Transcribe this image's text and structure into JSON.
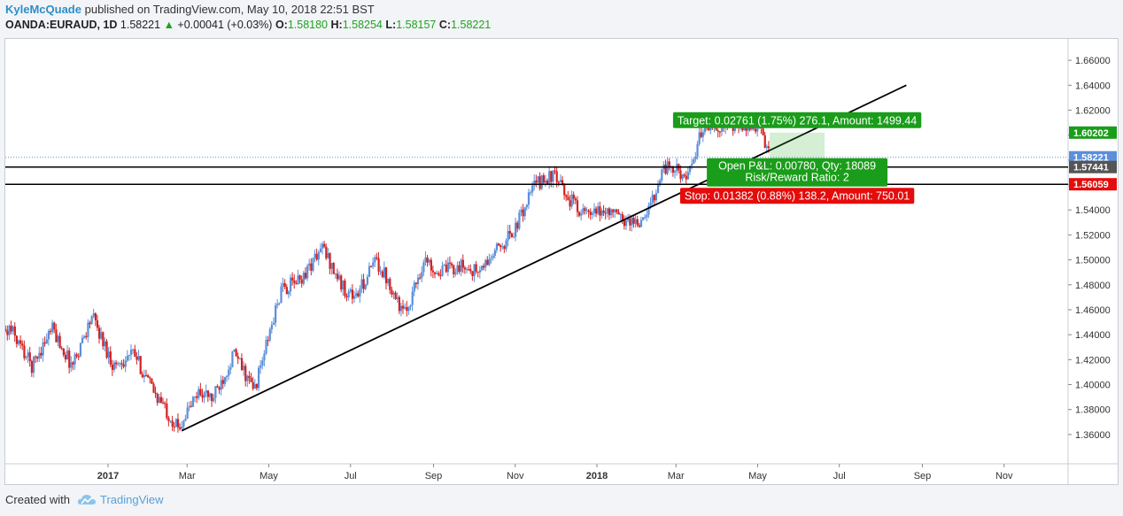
{
  "header": {
    "author": "KyleMcQuade",
    "published_text": "published on TradingView.com, May 10, 2018 22:51 BST",
    "symbol": "OANDA:EURAUD, 1D",
    "last": "1.58221",
    "change_arrow": "▲",
    "change": "+0.00041 (+0.03%)",
    "o_label": "O:",
    "o_val": "1.58180",
    "h_label": "H:",
    "h_val": "1.58254",
    "l_label": "L:",
    "l_val": "1.58157",
    "c_label": "C:",
    "c_val": "1.58221"
  },
  "footer": {
    "created_with": "Created with",
    "brand": "TradingView"
  },
  "colors": {
    "up": "#5b8fd9",
    "down": "#d42020",
    "target": "#1a9d1a",
    "stop": "#e50c0c",
    "last_price": "#5b8fd9",
    "line": "#000000"
  },
  "chart_data": {
    "type": "candlestick",
    "ylim": [
      1.35,
      1.67
    ],
    "y_ticks": [
      "1.66000",
      "1.64000",
      "1.62000",
      "1.60000",
      "1.58000",
      "1.56000",
      "1.54000",
      "1.52000",
      "1.50000",
      "1.48000",
      "1.46000",
      "1.44000",
      "1.42000",
      "1.40000",
      "1.38000",
      "1.36000"
    ],
    "x_ticks": [
      {
        "label": "2017",
        "date": "2017-01-01",
        "bold": true
      },
      {
        "label": "Mar",
        "date": "2017-03-01"
      },
      {
        "label": "May",
        "date": "2017-05-01"
      },
      {
        "label": "Jul",
        "date": "2017-07-01"
      },
      {
        "label": "Sep",
        "date": "2017-09-01"
      },
      {
        "label": "Nov",
        "date": "2017-11-01"
      },
      {
        "label": "2018",
        "date": "2018-01-01",
        "bold": true
      },
      {
        "label": "Mar",
        "date": "2018-03-01"
      },
      {
        "label": "May",
        "date": "2018-05-01"
      },
      {
        "label": "Jul",
        "date": "2018-07-01"
      },
      {
        "label": "Sep",
        "date": "2018-09-01"
      },
      {
        "label": "Nov",
        "date": "2018-11-01"
      }
    ],
    "price_path": [
      [
        "2016-10-01",
        1.428
      ],
      [
        "2016-10-20",
        1.445
      ],
      [
        "2016-11-05",
        1.415
      ],
      [
        "2016-11-20",
        1.445
      ],
      [
        "2016-12-05",
        1.415
      ],
      [
        "2016-12-20",
        1.455
      ],
      [
        "2017-01-05",
        1.415
      ],
      [
        "2017-01-20",
        1.425
      ],
      [
        "2017-02-01",
        1.4
      ],
      [
        "2017-02-22",
        1.365
      ],
      [
        "2017-03-10",
        1.395
      ],
      [
        "2017-03-20",
        1.388
      ],
      [
        "2017-04-05",
        1.425
      ],
      [
        "2017-04-20",
        1.395
      ],
      [
        "2017-05-10",
        1.475
      ],
      [
        "2017-05-25",
        1.485
      ],
      [
        "2017-06-10",
        1.51
      ],
      [
        "2017-06-25",
        1.478
      ],
      [
        "2017-07-05",
        1.47
      ],
      [
        "2017-07-20",
        1.5
      ],
      [
        "2017-07-31",
        1.48
      ],
      [
        "2017-08-10",
        1.455
      ],
      [
        "2017-08-25",
        1.5
      ],
      [
        "2017-09-05",
        1.49
      ],
      [
        "2017-09-20",
        1.495
      ],
      [
        "2017-10-05",
        1.49
      ],
      [
        "2017-10-20",
        1.51
      ],
      [
        "2017-11-01",
        1.525
      ],
      [
        "2017-11-15",
        1.56
      ],
      [
        "2017-11-29",
        1.568
      ],
      [
        "2017-12-10",
        1.55
      ],
      [
        "2017-12-25",
        1.535
      ],
      [
        "2018-01-10",
        1.54
      ],
      [
        "2018-01-20",
        1.532
      ],
      [
        "2018-02-05",
        1.53
      ],
      [
        "2018-02-20",
        1.575
      ],
      [
        "2018-03-05",
        1.57
      ],
      [
        "2018-03-10",
        1.565
      ],
      [
        "2018-03-22",
        1.61
      ],
      [
        "2018-04-05",
        1.607
      ],
      [
        "2018-04-20",
        1.605
      ],
      [
        "2018-05-01",
        1.608
      ],
      [
        "2018-05-10",
        1.582
      ]
    ],
    "trendline": {
      "start": [
        "2017-02-25",
        1.363
      ],
      "end": [
        "2018-08-20",
        1.64
      ]
    },
    "horizontal_lines": [
      1.5744,
      1.56059
    ],
    "last_price": 1.58221,
    "axis_labels": [
      {
        "text": "1.60202",
        "value": 1.60202,
        "color": "#1a9d1a"
      },
      {
        "text": "1.58221",
        "value": 1.58221,
        "color": "#5b8fd9"
      },
      {
        "text": "1.57441",
        "value": 1.57441,
        "color": "#555555"
      },
      {
        "text": "1.56059",
        "value": 1.56059,
        "color": "#e50c0c"
      }
    ],
    "position": {
      "entry": 1.5744,
      "target": 1.60202,
      "stop": 1.56059,
      "start": "2018-05-10",
      "end": "2018-06-20",
      "target_label": "Target: 0.02761 (1.75%) 276.1, Amount: 1499.44",
      "open_label": "Open P&L: 0.00780, Qty: 18089",
      "rr_label": "Risk/Reward Ratio: 2",
      "stop_label": "Stop: 0.01382 (0.88%) 138.2, Amount: 750.01"
    }
  }
}
